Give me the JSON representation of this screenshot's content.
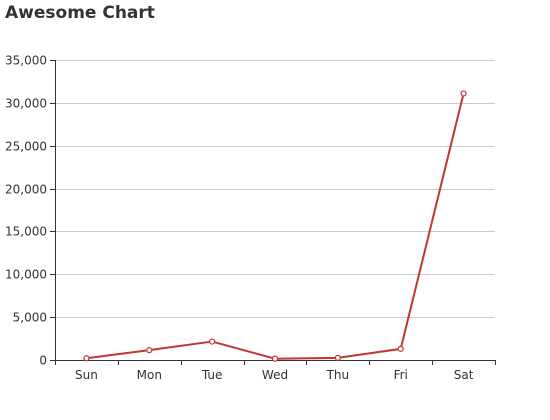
{
  "chart_data": {
    "type": "line",
    "title": "Awesome Chart",
    "categories": [
      "Sun",
      "Mon",
      "Tue",
      "Wed",
      "Thu",
      "Fri",
      "Sat"
    ],
    "series": [
      {
        "values": [
          200,
          1150,
          2150,
          150,
          250,
          1300,
          31100
        ],
        "color": "#c23531"
      }
    ],
    "ylim": [
      0,
      35000
    ],
    "yticks": [
      "0",
      "5,000",
      "10,000",
      "15,000",
      "20,000",
      "25,000",
      "30,000",
      "35,000"
    ],
    "grid": true
  }
}
